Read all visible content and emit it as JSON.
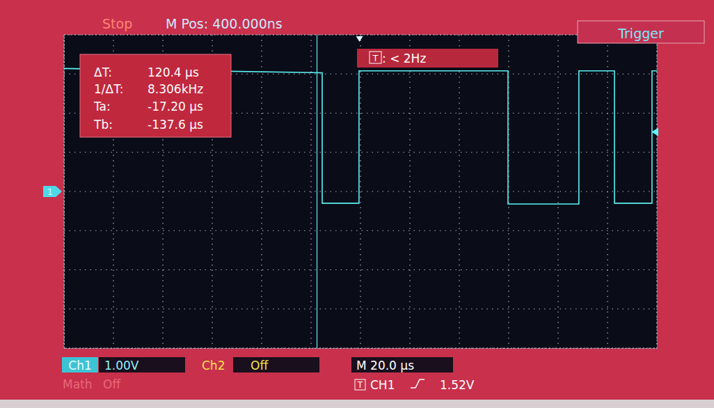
{
  "chart_data": {
    "type": "line",
    "x": [
      -119.6,
      -15.1,
      -15.1,
      -0.2,
      -0.2,
      60.1,
      60.1,
      88.8,
      88.8,
      103.2,
      103.2,
      118.4,
      118.4,
      120.4
    ],
    "values": [
      3.14,
      3.03,
      -0.3,
      -0.3,
      3.08,
      3.08,
      -0.32,
      -0.32,
      3.08,
      3.08,
      -0.3,
      -0.3,
      3.08,
      3.08
    ],
    "color": "#5cf2f2",
    "line_style": "solid",
    "xlim": [
      -119.6,
      120.4
    ],
    "xticks": [
      -119.6,
      -99.6,
      -79.6,
      -59.6,
      -39.6,
      -19.6,
      0.4,
      20.4,
      40.4,
      60.4,
      80.4,
      100.4,
      120.4
    ],
    "ylim": [
      -4,
      4
    ],
    "yticks": [
      -4,
      -3,
      -2,
      -1,
      0,
      1,
      2,
      3,
      4
    ],
    "grid": true,
    "tick_labels": false,
    "cursors": [
      -17.2,
      -137.6
    ],
    "trigger_position": 0,
    "trigger_level": 1.52,
    "ground_level": 0
  },
  "screen": {
    "status": "Stop",
    "position_label": "M Pos: 400.000ns",
    "menu_title": "Trigger",
    "measurements": [
      {
        "label": "ΔT:",
        "value": "120.4 µs"
      },
      {
        "label": "1/ΔT:",
        "value": "8.306kHz"
      },
      {
        "label": "Ta:",
        "value": "-17.20 µs"
      },
      {
        "label": "Tb:",
        "value": "-137.6 µs"
      }
    ],
    "trigger_info": {
      "icon": "T",
      "text": ": < 2Hz"
    },
    "ground_marker": "1",
    "footer": {
      "ch1": "Ch1",
      "ch1_scale": "1.00V",
      "ch2": "Ch2",
      "ch2_state": "Off",
      "timebase": "M 20.0 µs",
      "math": "Math",
      "math_state": "Off",
      "trigger_icon": "T",
      "trigger_source": "CH1",
      "trigger_level_label": "1.52V"
    }
  }
}
